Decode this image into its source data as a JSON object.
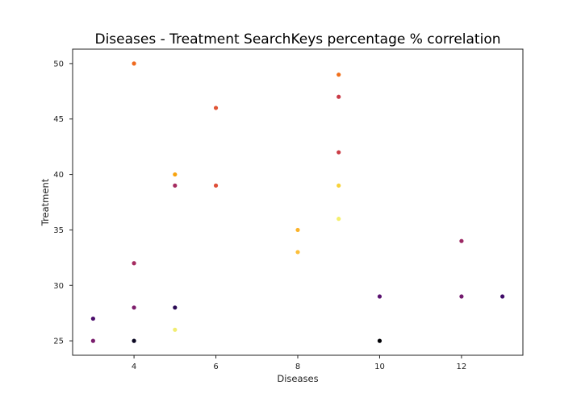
{
  "chart_data": {
    "type": "scatter",
    "title": "Diseases - Treatment SearchKeys percentage % correlation",
    "xlabel": "Diseases",
    "ylabel": "Treatment",
    "xlim": [
      2.5,
      13.5
    ],
    "ylim": [
      23.7,
      51.3
    ],
    "xticks": [
      4,
      6,
      8,
      10,
      12
    ],
    "yticks": [
      25,
      30,
      35,
      40,
      45,
      50
    ],
    "grid": false,
    "legend": "none",
    "colormap": "inferno",
    "points": [
      {
        "x": 3,
        "y": 27,
        "color": "#4b0c6b"
      },
      {
        "x": 3,
        "y": 25,
        "color": "#7a1d6d"
      },
      {
        "x": 4,
        "y": 50,
        "color": "#ef6a1f"
      },
      {
        "x": 4,
        "y": 32,
        "color": "#a52c60"
      },
      {
        "x": 4,
        "y": 28,
        "color": "#7e1e6c"
      },
      {
        "x": 4,
        "y": 25,
        "color": "#0a0722"
      },
      {
        "x": 5,
        "y": 40,
        "color": "#f8a30e"
      },
      {
        "x": 5,
        "y": 39,
        "color": "#a52c60"
      },
      {
        "x": 5,
        "y": 28,
        "color": "#2a0a54"
      },
      {
        "x": 5,
        "y": 26,
        "color": "#f1ed71"
      },
      {
        "x": 6,
        "y": 46,
        "color": "#e05536"
      },
      {
        "x": 6,
        "y": 39,
        "color": "#df4f39"
      },
      {
        "x": 8,
        "y": 35,
        "color": "#fbb32a"
      },
      {
        "x": 8,
        "y": 33,
        "color": "#fcbf3a"
      },
      {
        "x": 9,
        "y": 49,
        "color": "#f06f1b"
      },
      {
        "x": 9,
        "y": 47,
        "color": "#c93a47"
      },
      {
        "x": 9,
        "y": 42,
        "color": "#cb3e46"
      },
      {
        "x": 9,
        "y": 39,
        "color": "#f8d23a"
      },
      {
        "x": 9,
        "y": 36,
        "color": "#f4ef6c"
      },
      {
        "x": 10,
        "y": 29,
        "color": "#5a1270"
      },
      {
        "x": 10,
        "y": 25,
        "color": "#000004"
      },
      {
        "x": 12,
        "y": 34,
        "color": "#9c2964"
      },
      {
        "x": 12,
        "y": 29,
        "color": "#731a6e"
      },
      {
        "x": 13,
        "y": 29,
        "color": "#3f0b68"
      }
    ]
  }
}
